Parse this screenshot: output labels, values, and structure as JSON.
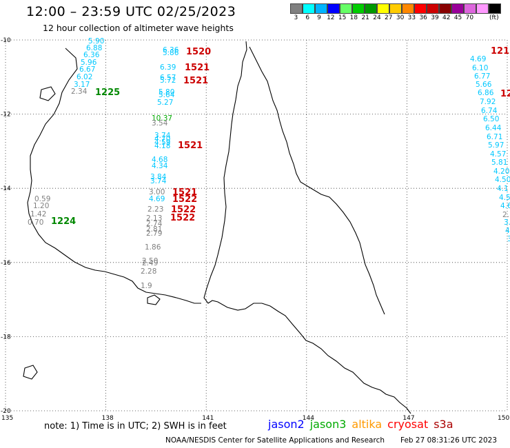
{
  "header": {
    "title": "12:00 – 23:59 UTC 02/25/2023",
    "subtitle": "12 hour collection of altimeter wave heights"
  },
  "color_scale": {
    "unit": "(ft)",
    "steps": [
      {
        "label": "3",
        "color": "#808080"
      },
      {
        "label": "6",
        "color": "#00ffff"
      },
      {
        "label": "9",
        "color": "#00b4ff"
      },
      {
        "label": "12",
        "color": "#0000ff"
      },
      {
        "label": "15",
        "color": "#66ff66"
      },
      {
        "label": "18",
        "color": "#00cc00"
      },
      {
        "label": "21",
        "color": "#009900"
      },
      {
        "label": "24",
        "color": "#ffff00"
      },
      {
        "label": "27",
        "color": "#ffcc00"
      },
      {
        "label": "30",
        "color": "#ff8800"
      },
      {
        "label": "33",
        "color": "#ff0000"
      },
      {
        "label": "36",
        "color": "#cc0000"
      },
      {
        "label": "39",
        "color": "#880000"
      },
      {
        "label": "42",
        "color": "#990099"
      },
      {
        "label": "45",
        "color": "#dd66dd"
      },
      {
        "label": "70",
        "color": "#ff99ff"
      },
      {
        "label": "",
        "color": "#000000"
      }
    ]
  },
  "map": {
    "lon_ticks": [
      "135",
      "138",
      "141",
      "144",
      "147",
      "150"
    ],
    "lat_ticks": [
      "-10",
      "-12",
      "-14",
      "-16",
      "-18",
      "-20"
    ],
    "lon_range": [
      135,
      150
    ],
    "lat_range": [
      -20,
      -10
    ]
  },
  "observations": {
    "values": [
      {
        "text": "5.90",
        "color": "#00c8ff"
      },
      {
        "text": "6.88",
        "color": "#00c8ff"
      },
      {
        "text": "6.36",
        "color": "#00c8ff"
      },
      {
        "text": "5.96",
        "color": "#00c8ff"
      },
      {
        "text": "6.67",
        "color": "#00c8ff"
      },
      {
        "text": "6.02",
        "color": "#00c8ff"
      },
      {
        "text": "3.17",
        "color": "#00c8ff"
      },
      {
        "text": "2.34",
        "color": "#808080"
      },
      {
        "text": "6.36",
        "color": "#00c8ff"
      },
      {
        "text": "5.86",
        "color": "#00c8ff"
      },
      {
        "text": "6.39",
        "color": "#00c8ff"
      },
      {
        "text": "6.57",
        "color": "#00c8ff"
      },
      {
        "text": "5.72",
        "color": "#00c8ff"
      },
      {
        "text": "5.80",
        "color": "#00c8ff"
      },
      {
        "text": "5.64",
        "color": "#00c8ff"
      },
      {
        "text": "5.27",
        "color": "#00c8ff"
      },
      {
        "text": "10.37",
        "color": "#00aa00"
      },
      {
        "text": "3.54",
        "color": "#808080"
      },
      {
        "text": "3.74",
        "color": "#00c8ff"
      },
      {
        "text": "4.70",
        "color": "#00c8ff"
      },
      {
        "text": "4.59",
        "color": "#00c8ff"
      },
      {
        "text": "4.18",
        "color": "#00c8ff"
      },
      {
        "text": "4.68",
        "color": "#00c8ff"
      },
      {
        "text": "4.34",
        "color": "#00c8ff"
      },
      {
        "text": "3.84",
        "color": "#00c8ff"
      },
      {
        "text": "3.74",
        "color": "#00c8ff"
      },
      {
        "text": "3.00",
        "color": "#808080"
      },
      {
        "text": "4.69",
        "color": "#00c8ff"
      },
      {
        "text": "2.23",
        "color": "#808080"
      },
      {
        "text": "2.13",
        "color": "#808080"
      },
      {
        "text": "2.74",
        "color": "#808080"
      },
      {
        "text": "2.81",
        "color": "#808080"
      },
      {
        "text": "2.79",
        "color": "#808080"
      },
      {
        "text": "1.86",
        "color": "#808080"
      },
      {
        "text": "2.50",
        "color": "#808080"
      },
      {
        "text": "2.49",
        "color": "#808080"
      },
      {
        "text": "2.28",
        "color": "#808080"
      },
      {
        "text": "1.9",
        "color": "#808080"
      },
      {
        "text": "0.59",
        "color": "#808080"
      },
      {
        "text": "1.20",
        "color": "#808080"
      },
      {
        "text": "1.42",
        "color": "#808080"
      },
      {
        "text": "0.70",
        "color": "#808080"
      },
      {
        "text": "4.69",
        "color": "#00c8ff"
      },
      {
        "text": "6.10",
        "color": "#00c8ff"
      },
      {
        "text": "6.77",
        "color": "#00c8ff"
      },
      {
        "text": "5.66",
        "color": "#00c8ff"
      },
      {
        "text": "6.86",
        "color": "#00c8ff"
      },
      {
        "text": "7.92",
        "color": "#00c8ff"
      },
      {
        "text": "6.74",
        "color": "#00c8ff"
      },
      {
        "text": "6.50",
        "color": "#00c8ff"
      },
      {
        "text": "6.44",
        "color": "#00c8ff"
      },
      {
        "text": "6.71",
        "color": "#00c8ff"
      },
      {
        "text": "5.97",
        "color": "#00c8ff"
      },
      {
        "text": "4.57",
        "color": "#00c8ff"
      },
      {
        "text": "5.81",
        "color": "#00c8ff"
      },
      {
        "text": "4.20",
        "color": "#00c8ff"
      },
      {
        "text": "4.50",
        "color": "#00c8ff"
      },
      {
        "text": "4.1",
        "color": "#00c8ff"
      },
      {
        "text": "4.5",
        "color": "#00c8ff"
      },
      {
        "text": "4.6",
        "color": "#00c8ff"
      },
      {
        "text": "2.",
        "color": "#808080"
      },
      {
        "text": "3.",
        "color": "#00c8ff"
      },
      {
        "text": "4.",
        "color": "#00c8ff"
      },
      {
        "text": "3",
        "color": "#00c8ff"
      }
    ],
    "pass_times": [
      {
        "text": "1520",
        "color": "#cc0000"
      },
      {
        "text": "1521",
        "color": "#cc0000"
      },
      {
        "text": "1521",
        "color": "#cc0000"
      },
      {
        "text": "1521",
        "color": "#cc0000"
      },
      {
        "text": "1521",
        "color": "#cc0000"
      },
      {
        "text": "1522",
        "color": "#cc0000"
      },
      {
        "text": "1522",
        "color": "#cc0000"
      },
      {
        "text": "1522",
        "color": "#cc0000"
      },
      {
        "text": "1225",
        "color": "#008800"
      },
      {
        "text": "1224",
        "color": "#008800"
      },
      {
        "text": "121",
        "color": "#cc0000"
      },
      {
        "text": "12",
        "color": "#cc0000"
      }
    ]
  },
  "notes": {
    "text": "note:  1) Time is in UTC; 2) SWH is in feet"
  },
  "satellites": [
    {
      "name": "jason2",
      "color": "#0000ff"
    },
    {
      "name": "jason3",
      "color": "#00aa00"
    },
    {
      "name": "altika",
      "color": "#ff9900"
    },
    {
      "name": "cryosat",
      "color": "#ff0000"
    },
    {
      "name": "s3a",
      "color": "#aa0000"
    }
  ],
  "footer": {
    "credit": "NOAA/NESDIS Center for Satellite Applications and Research",
    "timestamp": "Feb 27 08:31:26 UTC 2023"
  }
}
